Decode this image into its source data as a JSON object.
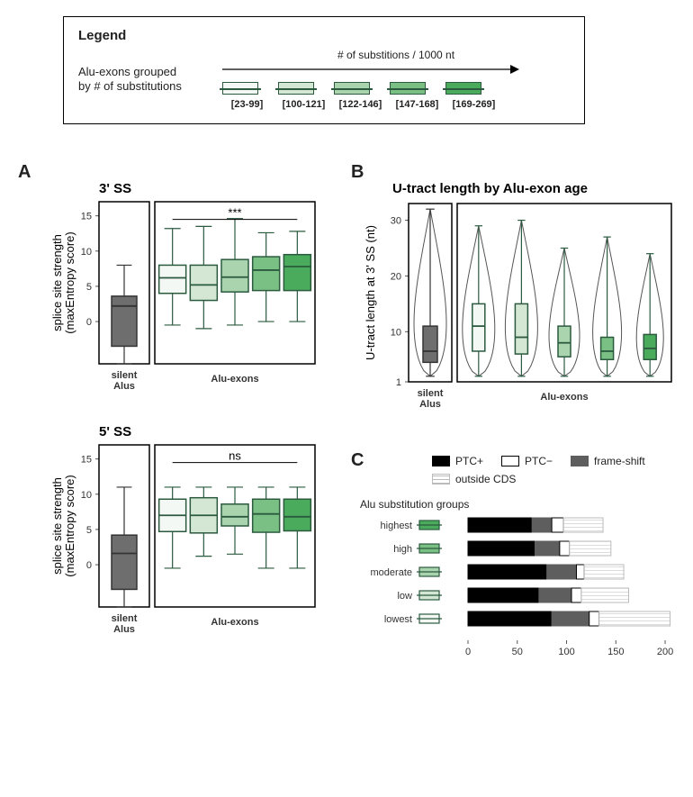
{
  "legend": {
    "title": "Legend",
    "left_text_line1": "Alu-exons grouped",
    "left_text_line2": "by # of substitutions",
    "arrow_label": "# of substitions / 1000 nt",
    "group_colors": [
      "#f3f8f4",
      "#d3e7d4",
      "#aad4ae",
      "#7ac085",
      "#4aab5d"
    ],
    "group_ranges": [
      "[23-99]",
      "[100-121]",
      "[122-146]",
      "[147-168]",
      "[169-269]"
    ],
    "stroke": "#2b5a3f"
  },
  "panelA": {
    "label": "A",
    "charts": [
      {
        "title": "3' SS",
        "ylabel_line1": "splice site strength",
        "ylabel_line2": "(maxEntropy score)",
        "ylim": [
          -6,
          17
        ],
        "yticks": [
          0,
          5,
          10,
          15
        ],
        "sig": "***",
        "silent": {
          "q1": -3.5,
          "median": 2.2,
          "q3": 3.6,
          "wl": -6,
          "wh": 8,
          "color": "#6e6e6e"
        },
        "groups": [
          {
            "q1": 4.0,
            "median": 6.2,
            "q3": 8.0,
            "wl": -0.5,
            "wh": 13.2
          },
          {
            "q1": 3.0,
            "median": 5.2,
            "q3": 8.0,
            "wl": -1.0,
            "wh": 13.5
          },
          {
            "q1": 4.2,
            "median": 6.3,
            "q3": 8.8,
            "wl": -0.5,
            "wh": 14.6
          },
          {
            "q1": 4.4,
            "median": 7.3,
            "q3": 9.2,
            "wl": 0,
            "wh": 12.6
          },
          {
            "q1": 4.4,
            "median": 7.8,
            "q3": 9.5,
            "wl": 0,
            "wh": 12.8
          }
        ]
      },
      {
        "title": "5' SS",
        "ylabel_line1": "splice site strength",
        "ylabel_line2": "(maxEntropy score)",
        "ylim": [
          -6,
          17
        ],
        "yticks": [
          0,
          5,
          10,
          15
        ],
        "sig": "ns",
        "silent": {
          "q1": -3.5,
          "median": 1.6,
          "q3": 4.2,
          "wl": -6,
          "wh": 11,
          "color": "#6e6e6e"
        },
        "groups": [
          {
            "q1": 4.7,
            "median": 7.0,
            "q3": 9.3,
            "wl": -0.5,
            "wh": 11.0
          },
          {
            "q1": 4.5,
            "median": 7.0,
            "q3": 9.5,
            "wl": 1.2,
            "wh": 11.0
          },
          {
            "q1": 5.5,
            "median": 6.8,
            "q3": 8.6,
            "wl": 1.5,
            "wh": 11.0
          },
          {
            "q1": 4.6,
            "median": 7.2,
            "q3": 9.3,
            "wl": -0.5,
            "wh": 11.0
          },
          {
            "q1": 4.8,
            "median": 6.8,
            "q3": 9.3,
            "wl": -0.5,
            "wh": 11.0
          }
        ]
      }
    ],
    "xcats": {
      "silent": "silent\\nAlus",
      "exons": "Alu-exons"
    }
  },
  "panelB": {
    "label": "B",
    "title": "U-tract length by Alu-exon age",
    "ylabel": "U-tract length at 3' SS (nt)",
    "ylim": [
      1,
      33
    ],
    "yticks": [
      1,
      10,
      20,
      30
    ],
    "silent": {
      "q1": 4.5,
      "median": 6.5,
      "q3": 11,
      "wl": 2,
      "wh": 32,
      "color": "#6e6e6e"
    },
    "groups": [
      {
        "q1": 6.5,
        "median": 11,
        "q3": 15,
        "wl": 2,
        "wh": 29
      },
      {
        "q1": 6,
        "median": 9,
        "q3": 15,
        "wl": 2,
        "wh": 30
      },
      {
        "q1": 5.5,
        "median": 8,
        "q3": 11,
        "wl": 2,
        "wh": 25
      },
      {
        "q1": 5,
        "median": 6.5,
        "q3": 9,
        "wl": 2,
        "wh": 27
      },
      {
        "q1": 5,
        "median": 7,
        "q3": 9.5,
        "wl": 2,
        "wh": 24
      }
    ],
    "violin_width": [
      1.0,
      0.9,
      0.9,
      0.85,
      0.8,
      0.75
    ]
  },
  "panelC": {
    "label": "C",
    "xlim": [
      0,
      210
    ],
    "xticks": [
      0,
      50,
      100,
      150,
      200
    ],
    "legend": {
      "ptc_plus": "PTC+",
      "ptc_minus": "PTC−",
      "frameshift": "frame-shift",
      "outside": "outside CDS"
    },
    "colors": {
      "ptc_plus": "#000000",
      "frameshift": "#5e5e5e",
      "ptc_minus": "#ffffff",
      "outside_hatch": "#c6c6c6"
    },
    "left_title": "Alu substitution groups",
    "rows": [
      {
        "label": "highest",
        "color_idx": 4,
        "ptc_plus": 65,
        "frameshift": 20,
        "ptc_minus": 12,
        "outside": 40
      },
      {
        "label": "high",
        "color_idx": 3,
        "ptc_plus": 68,
        "frameshift": 25,
        "ptc_minus": 10,
        "outside": 42
      },
      {
        "label": "moderate",
        "color_idx": 2,
        "ptc_plus": 80,
        "frameshift": 30,
        "ptc_minus": 8,
        "outside": 40
      },
      {
        "label": "low",
        "color_idx": 1,
        "ptc_plus": 72,
        "frameshift": 33,
        "ptc_minus": 10,
        "outside": 48
      },
      {
        "label": "lowest",
        "color_idx": 0,
        "ptc_plus": 85,
        "frameshift": 38,
        "ptc_minus": 10,
        "outside": 72
      }
    ]
  }
}
